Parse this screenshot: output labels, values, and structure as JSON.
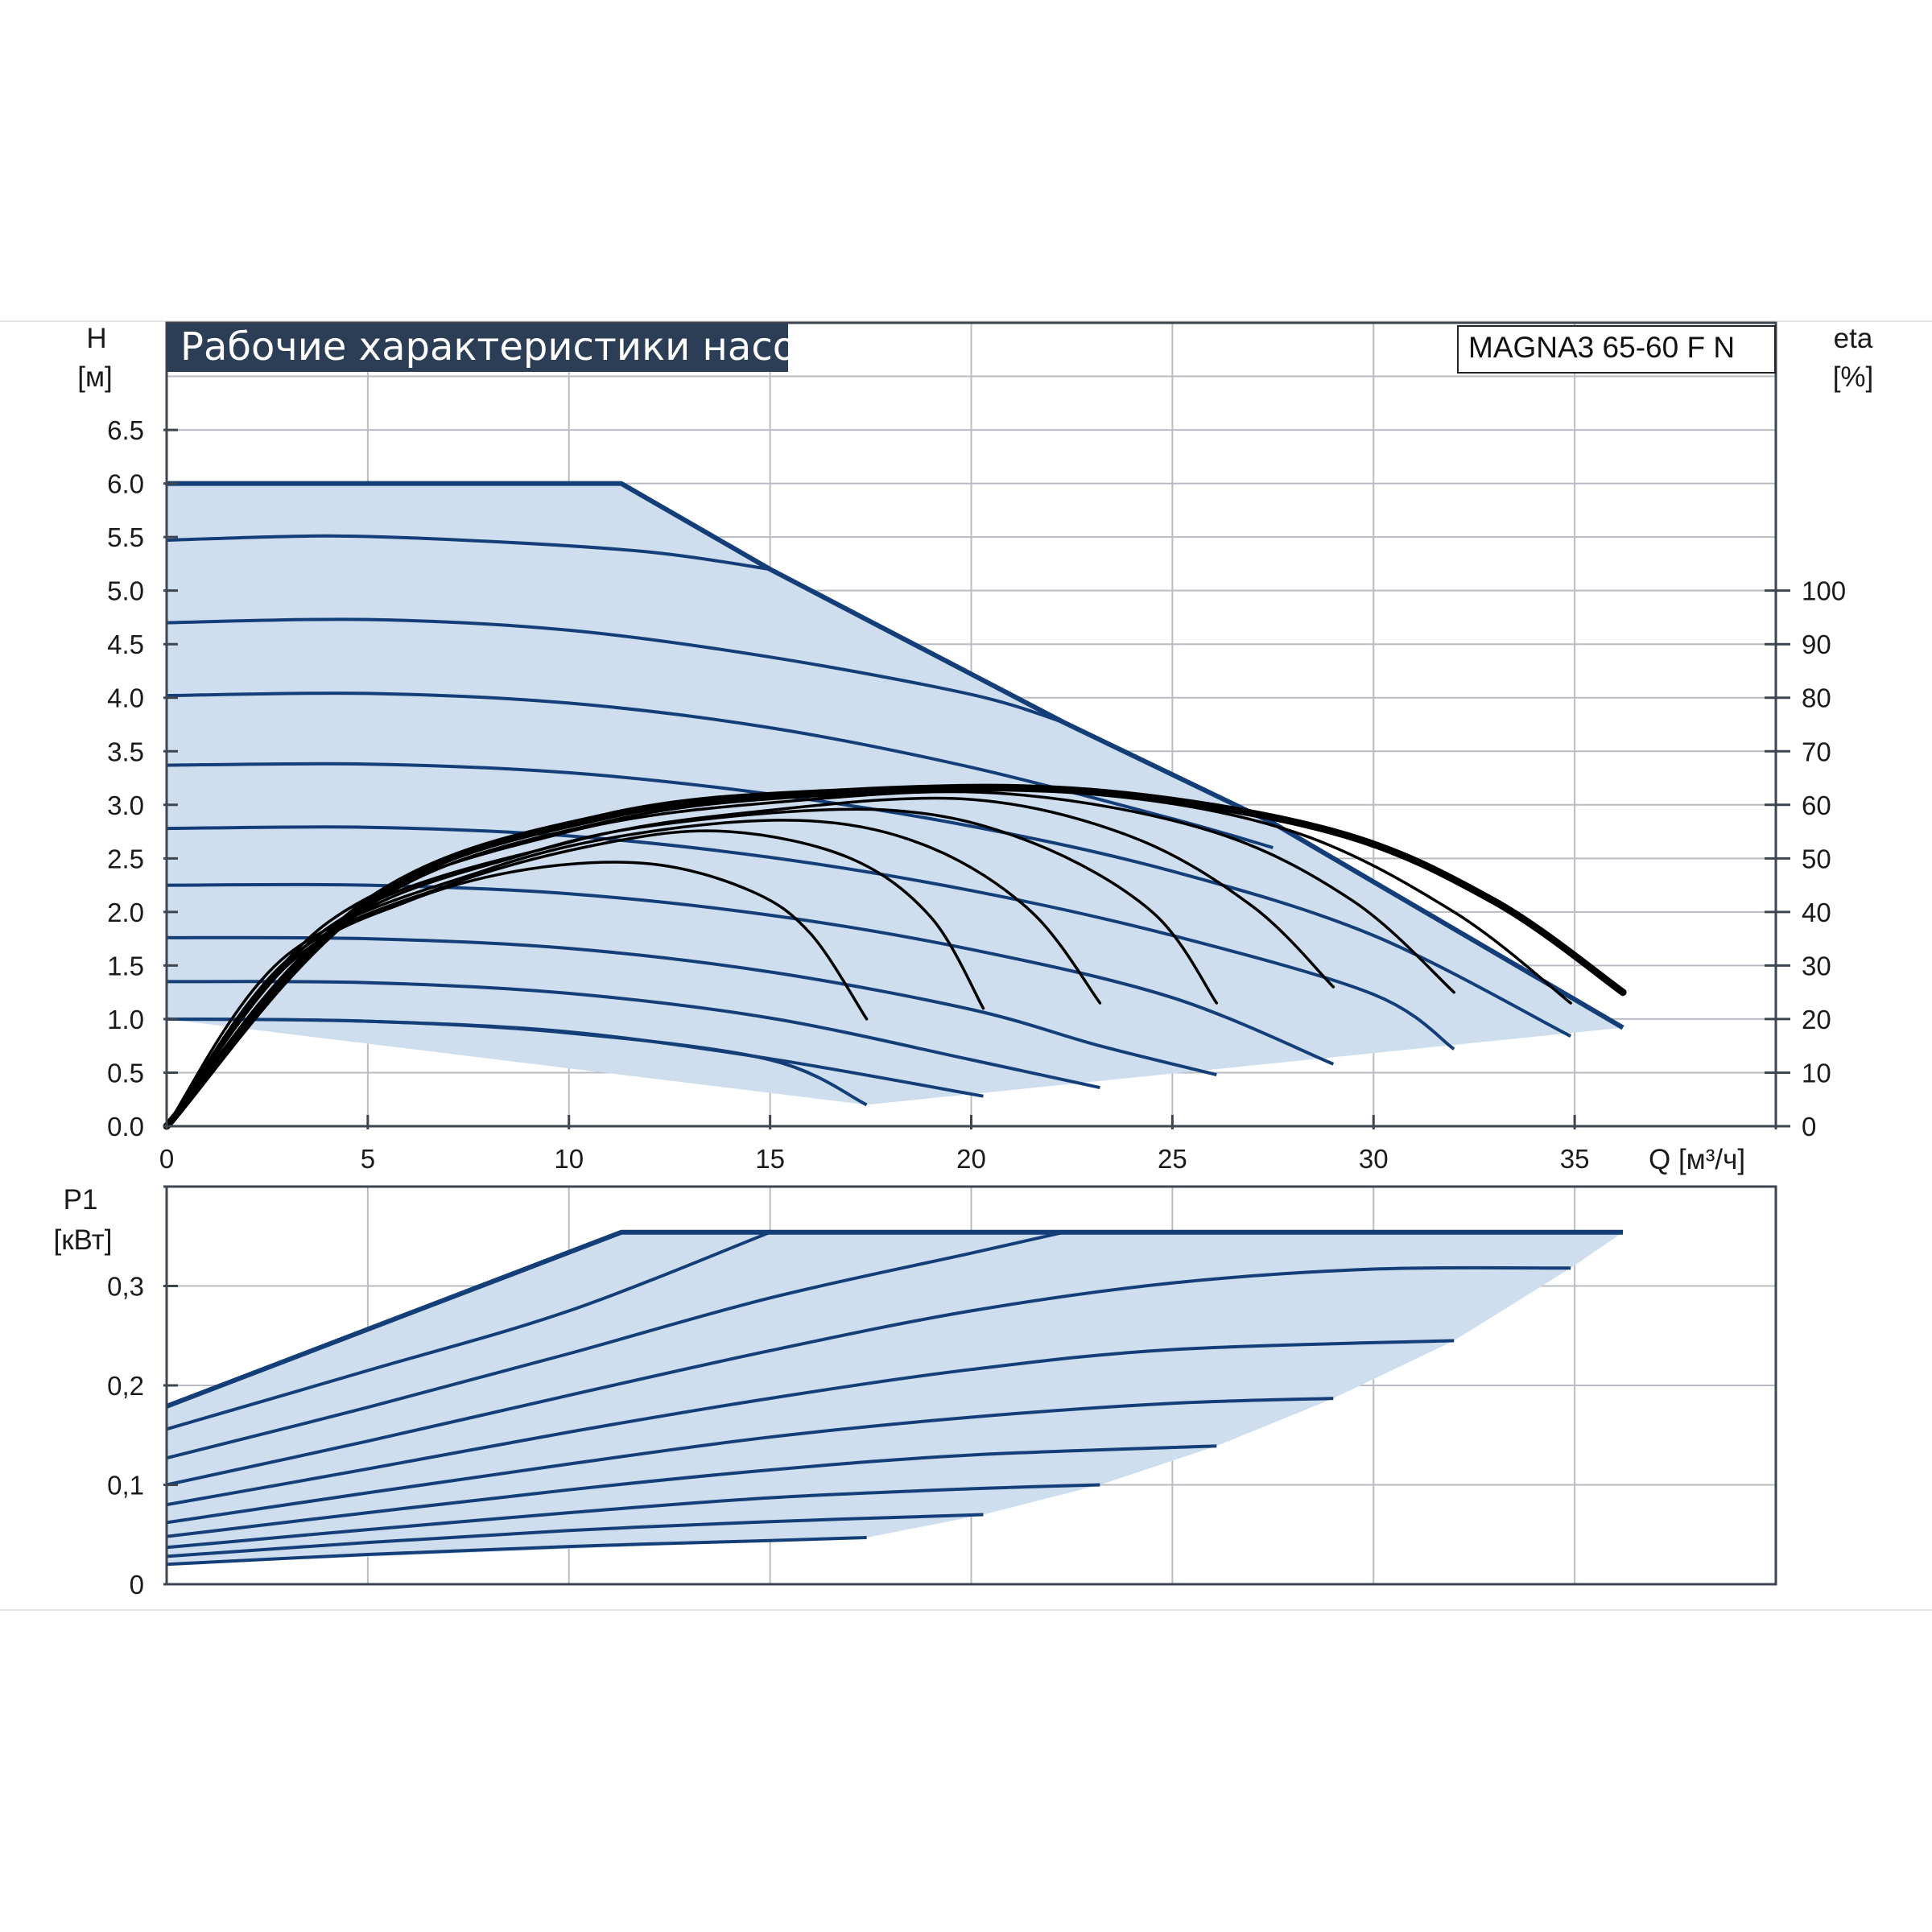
{
  "title": "Рабочие характеристики насоса",
  "model": "MAGNA3 65-60 F N",
  "colors": {
    "frame_bg": "#2b3e55",
    "region_fill": "#cfdeee",
    "curve": "#143e78",
    "efficiency": "#000000",
    "grid": "#b8bcc2"
  },
  "chart_data": [
    {
      "type": "line",
      "name": "head",
      "xlabel": "Q [м³/ч]",
      "ylabel": "H",
      "ylabel_unit": "[м]",
      "y2label": "eta",
      "y2label_unit": "[%]",
      "xlim": [
        0,
        40
      ],
      "ylim": [
        0,
        7.5
      ],
      "y2lim": [
        0,
        100
      ],
      "x_ticks": [
        "0",
        "5",
        "10",
        "15",
        "20",
        "25",
        "30",
        "35"
      ],
      "y_ticks": [
        "0.0",
        "0.5",
        "1.0",
        "1.5",
        "2.0",
        "2.5",
        "3.0",
        "3.5",
        "4.0",
        "4.5",
        "5.0",
        "5.5",
        "6.0",
        "6.5"
      ],
      "y2_ticks": [
        "0",
        "10",
        "20",
        "30",
        "40",
        "50",
        "60",
        "70",
        "80",
        "90",
        "100"
      ],
      "grid": true,
      "operating_area": [
        [
          0,
          6.0
        ],
        [
          11.3,
          6.0
        ],
        [
          15,
          5.2
        ],
        [
          22.3,
          3.77
        ],
        [
          27.5,
          2.83
        ],
        [
          36.2,
          0.92
        ],
        [
          17.4,
          0.2
        ],
        [
          0,
          1.0
        ]
      ],
      "series": [
        {
          "points": [
            [
              0,
              6.0
            ],
            [
              11.3,
              6.0
            ],
            [
              15,
              5.2
            ],
            [
              22.3,
              3.77
            ],
            [
              27.5,
              2.83
            ],
            [
              36.2,
              0.92
            ]
          ]
        },
        {
          "points": [
            [
              0,
              5.47
            ],
            [
              4,
              5.51
            ],
            [
              8,
              5.46
            ],
            [
              12,
              5.36
            ],
            [
              15,
              5.2
            ]
          ]
        },
        {
          "points": [
            [
              0,
              4.7
            ],
            [
              5,
              4.73
            ],
            [
              10,
              4.63
            ],
            [
              15,
              4.38
            ],
            [
              20,
              4.03
            ],
            [
              22.3,
              3.77
            ]
          ]
        },
        {
          "points": [
            [
              0,
              4.02
            ],
            [
              5,
              4.04
            ],
            [
              10,
              3.95
            ],
            [
              15,
              3.72
            ],
            [
              20,
              3.35
            ],
            [
              25,
              2.87
            ],
            [
              27.5,
              2.6
            ]
          ]
        },
        {
          "points": [
            [
              0,
              3.37
            ],
            [
              5,
              3.38
            ],
            [
              10,
              3.3
            ],
            [
              15,
              3.1
            ],
            [
              20,
              2.8
            ],
            [
              25,
              2.38
            ],
            [
              30,
              1.78
            ],
            [
              34.9,
              0.84
            ]
          ]
        },
        {
          "points": [
            [
              0,
              2.78
            ],
            [
              5,
              2.79
            ],
            [
              10,
              2.71
            ],
            [
              15,
              2.51
            ],
            [
              20,
              2.2
            ],
            [
              25,
              1.78
            ],
            [
              30,
              1.23
            ],
            [
              32,
              0.72
            ]
          ]
        },
        {
          "points": [
            [
              0,
              2.25
            ],
            [
              5,
              2.25
            ],
            [
              10,
              2.17
            ],
            [
              15,
              1.97
            ],
            [
              20,
              1.65
            ],
            [
              25,
              1.2
            ],
            [
              29,
              0.58
            ]
          ]
        },
        {
          "points": [
            [
              0,
              1.76
            ],
            [
              5,
              1.75
            ],
            [
              10,
              1.66
            ],
            [
              15,
              1.44
            ],
            [
              20,
              1.09
            ],
            [
              23.2,
              0.75
            ],
            [
              26.1,
              0.48
            ]
          ]
        },
        {
          "points": [
            [
              0,
              1.35
            ],
            [
              5,
              1.34
            ],
            [
              10,
              1.24
            ],
            [
              15,
              1.01
            ],
            [
              20,
              0.62
            ],
            [
              23.2,
              0.36
            ]
          ]
        },
        {
          "points": [
            [
              0,
              1.0
            ],
            [
              5,
              0.98
            ],
            [
              10,
              0.87
            ],
            [
              15,
              0.62
            ],
            [
              17.4,
              0.2
            ]
          ]
        },
        {
          "points": [
            [
              0,
              1.0
            ],
            [
              5,
              0.98
            ],
            [
              10,
              0.88
            ],
            [
              15,
              0.63
            ],
            [
              20.3,
              0.28
            ]
          ]
        }
      ],
      "efficiency_series": [
        {
          "points": [
            [
              0,
              0
            ],
            [
              3,
              30
            ],
            [
              6,
              42
            ],
            [
              9,
              48
            ],
            [
              12,
              49
            ],
            [
              14.5,
              44
            ],
            [
              16,
              36
            ],
            [
              17.4,
              20
            ]
          ]
        },
        {
          "points": [
            [
              0,
              0
            ],
            [
              3,
              31
            ],
            [
              7,
              45
            ],
            [
              11,
              53
            ],
            [
              14,
              55
            ],
            [
              17,
              50
            ],
            [
              19,
              39
            ],
            [
              20.3,
              22
            ]
          ]
        },
        {
          "points": [
            [
              0,
              0
            ],
            [
              3,
              32
            ],
            [
              8,
              48
            ],
            [
              12,
              55
            ],
            [
              16,
              57
            ],
            [
              19,
              52
            ],
            [
              21.5,
              40
            ],
            [
              23.2,
              23
            ]
          ]
        },
        {
          "points": [
            [
              0,
              0
            ],
            [
              4,
              36
            ],
            [
              9,
              51
            ],
            [
              13,
              57
            ],
            [
              18,
              59
            ],
            [
              21.5,
              53
            ],
            [
              24.5,
              40
            ],
            [
              26.1,
              23
            ]
          ]
        },
        {
          "points": [
            [
              0,
              0
            ],
            [
              4,
              37
            ],
            [
              10,
              53
            ],
            [
              15,
              59
            ],
            [
              20,
              61
            ],
            [
              24,
              54
            ],
            [
              27,
              41
            ],
            [
              29,
              26
            ]
          ]
        },
        {
          "points": [
            [
              0,
              0
            ],
            [
              4,
              38
            ],
            [
              10,
              55
            ],
            [
              16,
              61
            ],
            [
              21,
              62
            ],
            [
              26,
              55
            ],
            [
              29.5,
              42
            ],
            [
              32,
              25
            ]
          ]
        },
        {
          "points": [
            [
              0,
              0
            ],
            [
              5,
              41
            ],
            [
              11,
              57
            ],
            [
              17,
              62
            ],
            [
              23,
              62
            ],
            [
              28,
              55
            ],
            [
              32,
              40
            ],
            [
              34.9,
              23
            ]
          ]
        },
        {
          "points": [
            [
              0,
              0
            ],
            [
              5,
              42
            ],
            [
              11,
              58
            ],
            [
              17,
              62.5
            ],
            [
              23,
              62.5
            ],
            [
              29,
              55
            ],
            [
              33,
              42
            ],
            [
              36.2,
              25
            ]
          ]
        }
      ]
    },
    {
      "type": "line",
      "name": "power",
      "xlabel": "",
      "ylabel": "P1",
      "ylabel_unit": "[кВт]",
      "xlim": [
        0,
        40
      ],
      "ylim": [
        0,
        0.4
      ],
      "y_ticks": [
        "0",
        "0,1",
        "0,2",
        "0,3"
      ],
      "grid": true,
      "operating_area": [
        [
          0,
          0.179
        ],
        [
          11.3,
          0.354
        ],
        [
          36.2,
          0.354
        ],
        [
          34.9,
          0.318
        ],
        [
          32,
          0.245
        ],
        [
          29,
          0.187
        ],
        [
          26.1,
          0.139
        ],
        [
          23.2,
          0.1
        ],
        [
          20.3,
          0.07
        ],
        [
          17.4,
          0.047
        ],
        [
          0,
          0.02
        ]
      ],
      "series": [
        {
          "points": [
            [
              0,
              0.179
            ],
            [
              11.3,
              0.354
            ],
            [
              36.2,
              0.354
            ]
          ]
        },
        {
          "points": [
            [
              0,
              0.156
            ],
            [
              5,
              0.215
            ],
            [
              10,
              0.275
            ],
            [
              15,
              0.354
            ]
          ]
        },
        {
          "points": [
            [
              0,
              0.127
            ],
            [
              5,
              0.178
            ],
            [
              10,
              0.232
            ],
            [
              15,
              0.288
            ],
            [
              20,
              0.333
            ],
            [
              22.3,
              0.354
            ]
          ]
        },
        {
          "points": [
            [
              0,
              0.1
            ],
            [
              5,
              0.144
            ],
            [
              10,
              0.19
            ],
            [
              15,
              0.235
            ],
            [
              20,
              0.275
            ],
            [
              25,
              0.303
            ],
            [
              30,
              0.317
            ],
            [
              34.9,
              0.318
            ]
          ]
        },
        {
          "points": [
            [
              0,
              0.08
            ],
            [
              5,
              0.116
            ],
            [
              10,
              0.153
            ],
            [
              15,
              0.187
            ],
            [
              20,
              0.216
            ],
            [
              25,
              0.236
            ],
            [
              32,
              0.245
            ]
          ]
        },
        {
          "points": [
            [
              0,
              0.062
            ],
            [
              5,
              0.092
            ],
            [
              10,
              0.121
            ],
            [
              15,
              0.148
            ],
            [
              20,
              0.168
            ],
            [
              25,
              0.182
            ],
            [
              29,
              0.187
            ]
          ]
        },
        {
          "points": [
            [
              0,
              0.048
            ],
            [
              5,
              0.072
            ],
            [
              10,
              0.095
            ],
            [
              15,
              0.115
            ],
            [
              20,
              0.13
            ],
            [
              26.1,
              0.139
            ]
          ]
        },
        {
          "points": [
            [
              0,
              0.037
            ],
            [
              5,
              0.055
            ],
            [
              10,
              0.072
            ],
            [
              15,
              0.087
            ],
            [
              20,
              0.096
            ],
            [
              23.2,
              0.1
            ]
          ]
        },
        {
          "points": [
            [
              0,
              0.028
            ],
            [
              5,
              0.042
            ],
            [
              10,
              0.054
            ],
            [
              15,
              0.063
            ],
            [
              20.3,
              0.07
            ]
          ]
        },
        {
          "points": [
            [
              0,
              0.02
            ],
            [
              5,
              0.03
            ],
            [
              10,
              0.038
            ],
            [
              15,
              0.044
            ],
            [
              17.4,
              0.047
            ]
          ]
        }
      ]
    }
  ]
}
